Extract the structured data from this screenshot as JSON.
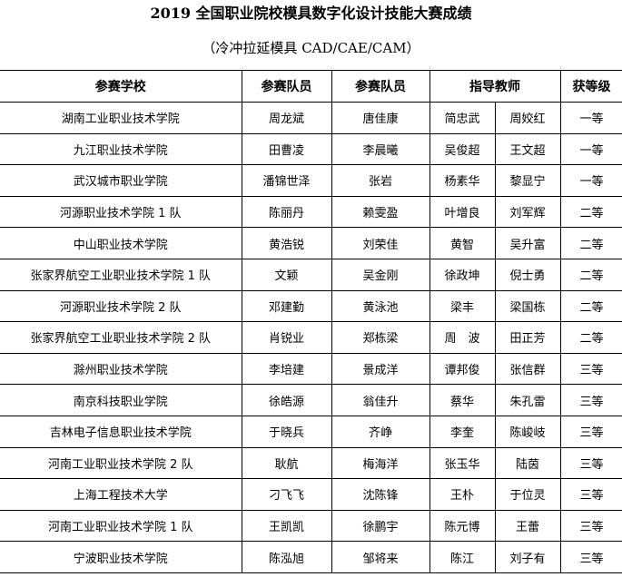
{
  "title": "2019 全国职业院校模具数字化设计技能大赛成绩",
  "subtitle": "（冷冲拉延模具 CAD/CAE/CAM）",
  "headers": {
    "school": "参赛学校",
    "member1": "参赛队员",
    "member2": "参赛队员",
    "teachers": "指导教师",
    "award": "获等级"
  },
  "rows": [
    {
      "school": "湖南工业职业技术学院",
      "m1": "周龙斌",
      "m2": "唐佳康",
      "t1": "简忠武",
      "t2": "周姣红",
      "award": "一等"
    },
    {
      "school": "九江职业技术学院",
      "m1": "田曹凌",
      "m2": "李晨曦",
      "t1": "吴俊超",
      "t2": "王文超",
      "award": "一等"
    },
    {
      "school": "武汉城市职业学院",
      "m1": "潘锦世泽",
      "m2": "张岩",
      "t1": "杨素华",
      "t2": "黎显宁",
      "award": "一等"
    },
    {
      "school": "河源职业技术学院 1 队",
      "m1": "陈丽丹",
      "m2": "赖雯盈",
      "t1": "叶增良",
      "t2": "刘军辉",
      "award": "二等"
    },
    {
      "school": "中山职业技术学院",
      "m1": "黄浩锐",
      "m2": "刘荣佳",
      "t1": "黄智",
      "t2": "吴升富",
      "award": "二等"
    },
    {
      "school": "张家界航空工业职业技术学院 1 队",
      "m1": "文颖",
      "m2": "吴金刚",
      "t1": "徐政坤",
      "t2": "倪士勇",
      "award": "二等"
    },
    {
      "school": "河源职业技术学院 2 队",
      "m1": "邓建勤",
      "m2": "黄泳池",
      "t1": "梁丰",
      "t2": "梁国栋",
      "award": "二等"
    },
    {
      "school": "张家界航空工业职业技术学院 2 队",
      "m1": "肖锐业",
      "m2": "郑栋梁",
      "t1": "周　波",
      "t2": "田正芳",
      "award": "二等"
    },
    {
      "school": "滁州职业技术学院",
      "m1": "李培建",
      "m2": "景成洋",
      "t1": "谭邦俊",
      "t2": "张信群",
      "award": "三等"
    },
    {
      "school": "南京科技职业学院",
      "m1": "徐皓源",
      "m2": "翁佳升",
      "t1": "蔡华",
      "t2": "朱孔雷",
      "award": "三等"
    },
    {
      "school": "吉林电子信息职业技术学院",
      "m1": "于晓兵",
      "m2": "齐峥",
      "t1": "李奎",
      "t2": "陈峻岐",
      "award": "三等"
    },
    {
      "school": "河南工业职业技术学院 2 队",
      "m1": "耿航",
      "m2": "梅海洋",
      "t1": "张玉华",
      "t2": "陆茵",
      "award": "三等"
    },
    {
      "school": "上海工程技术大学",
      "m1": "刁飞飞",
      "m2": "沈陈锋",
      "t1": "王朴",
      "t2": "于位灵",
      "award": "三等"
    },
    {
      "school": "河南工业职业技术学院 1 队",
      "m1": "王凯凯",
      "m2": "徐鹏宇",
      "t1": "陈元博",
      "t2": "王蕾",
      "award": "三等"
    },
    {
      "school": "宁波职业技术学院",
      "m1": "陈泓旭",
      "m2": "邹将来",
      "t1": "陈江",
      "t2": "刘子有",
      "award": "三等"
    }
  ]
}
